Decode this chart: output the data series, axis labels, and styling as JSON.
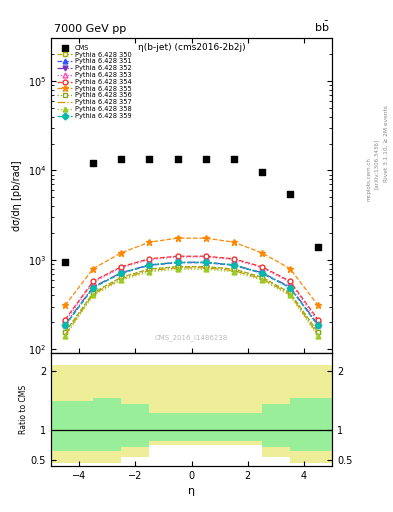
{
  "title_left": "7000 GeV pp",
  "title_right": "b$\\bar{b}$",
  "plot_title": "η(b-jet) (cms2016-2b2j)",
  "ylabel_main": "dσ/dη [pb/rad]",
  "ylabel_ratio": "Ratio to CMS",
  "xlabel": "η",
  "watermark": "CMS_2016_I1486238",
  "right_label": "Rivet 3.1.10, ≥ 2M events",
  "arxiv_label": "[arXiv:1306.3436]",
  "mcplots_label": "mcplots.cern.ch",
  "cms_data_x": [
    -4.5,
    -3.5,
    -2.5,
    -1.5,
    -0.5,
    0.5,
    1.5,
    2.5,
    3.5,
    4.5
  ],
  "cms_data_y": [
    950,
    12000,
    13500,
    13500,
    13500,
    13500,
    13500,
    9500,
    5500,
    1400
  ],
  "eta_points": [
    -4.5,
    -3.5,
    -2.5,
    -1.5,
    -0.5,
    0.5,
    1.5,
    2.5,
    3.5,
    4.5
  ],
  "pythia_lines": [
    {
      "label": "Pythia 6.428 350",
      "color": "#aaaa00",
      "linestyle": "--",
      "marker": "s",
      "markerfacecolor": "white",
      "markeredgecolor": "#aaaa00",
      "markersize": 3.5,
      "values": [
        155,
        430,
        640,
        790,
        840,
        840,
        790,
        640,
        430,
        155
      ]
    },
    {
      "label": "Pythia 6.428 351",
      "color": "#3355ff",
      "linestyle": "--",
      "marker": "^",
      "markerfacecolor": "#3355ff",
      "markeredgecolor": "#3355ff",
      "markersize": 3.5,
      "values": [
        185,
        490,
        710,
        870,
        930,
        930,
        870,
        710,
        490,
        185
      ]
    },
    {
      "label": "Pythia 6.428 352",
      "color": "#7733bb",
      "linestyle": "-.",
      "marker": "v",
      "markerfacecolor": "#7733bb",
      "markeredgecolor": "#7733bb",
      "markersize": 3.5,
      "values": [
        190,
        500,
        720,
        880,
        940,
        940,
        880,
        720,
        500,
        190
      ]
    },
    {
      "label": "Pythia 6.428 353",
      "color": "#ff44bb",
      "linestyle": ":",
      "marker": "^",
      "markerfacecolor": "white",
      "markeredgecolor": "#ff44bb",
      "markersize": 3.5,
      "values": [
        205,
        560,
        820,
        1010,
        1080,
        1080,
        1010,
        820,
        560,
        205
      ]
    },
    {
      "label": "Pythia 6.428 354",
      "color": "#ee3333",
      "linestyle": "--",
      "marker": "o",
      "markerfacecolor": "white",
      "markeredgecolor": "#ee3333",
      "markersize": 3.5,
      "values": [
        215,
        580,
        840,
        1030,
        1100,
        1100,
        1030,
        840,
        580,
        215
      ]
    },
    {
      "label": "Pythia 6.428 355",
      "color": "#ff8800",
      "linestyle": "--",
      "marker": "*",
      "markerfacecolor": "#ff8800",
      "markeredgecolor": "#ff8800",
      "markersize": 5,
      "values": [
        310,
        800,
        1200,
        1580,
        1750,
        1750,
        1580,
        1200,
        800,
        310
      ]
    },
    {
      "label": "Pythia 6.428 356",
      "color": "#88aa22",
      "linestyle": ":",
      "marker": "s",
      "markerfacecolor": "white",
      "markeredgecolor": "#88aa22",
      "markersize": 3.5,
      "values": [
        155,
        430,
        640,
        790,
        840,
        840,
        790,
        640,
        430,
        155
      ]
    },
    {
      "label": "Pythia 6.428 357",
      "color": "#cc9900",
      "linestyle": "-.",
      "marker": "None",
      "markerfacecolor": "#cc9900",
      "markeredgecolor": "#cc9900",
      "markersize": 3.5,
      "values": [
        145,
        415,
        615,
        760,
        815,
        815,
        760,
        615,
        415,
        145
      ]
    },
    {
      "label": "Pythia 6.428 358",
      "color": "#99cc22",
      "linestyle": ":",
      "marker": "^",
      "markerfacecolor": "#99cc22",
      "markeredgecolor": "#99cc22",
      "markersize": 3.5,
      "values": [
        140,
        400,
        595,
        735,
        785,
        785,
        735,
        595,
        400,
        140
      ]
    },
    {
      "label": "Pythia 6.428 359",
      "color": "#00bbaa",
      "linestyle": "--",
      "marker": "D",
      "markerfacecolor": "#00bbaa",
      "markeredgecolor": "#00bbaa",
      "markersize": 3.5,
      "values": [
        185,
        490,
        715,
        880,
        940,
        940,
        880,
        715,
        490,
        185
      ]
    }
  ],
  "ratio_band_edges": [
    -5.0,
    -3.5,
    -2.5,
    -1.5,
    1.5,
    2.5,
    3.5,
    5.0
  ],
  "ratio_yellow_top": [
    2.1,
    2.1,
    2.1,
    2.1,
    2.1,
    2.1,
    2.1
  ],
  "ratio_yellow_bot": [
    0.45,
    0.45,
    0.55,
    0.75,
    0.75,
    0.55,
    0.45
  ],
  "ratio_green_top": [
    1.5,
    1.55,
    1.45,
    1.3,
    1.3,
    1.45,
    1.55
  ],
  "ratio_green_bot": [
    0.65,
    0.65,
    0.72,
    0.82,
    0.82,
    0.72,
    0.65
  ],
  "ylim_main": [
    90,
    300000
  ],
  "ylim_ratio": [
    0.4,
    2.3
  ],
  "xlim": [
    -5,
    5
  ]
}
